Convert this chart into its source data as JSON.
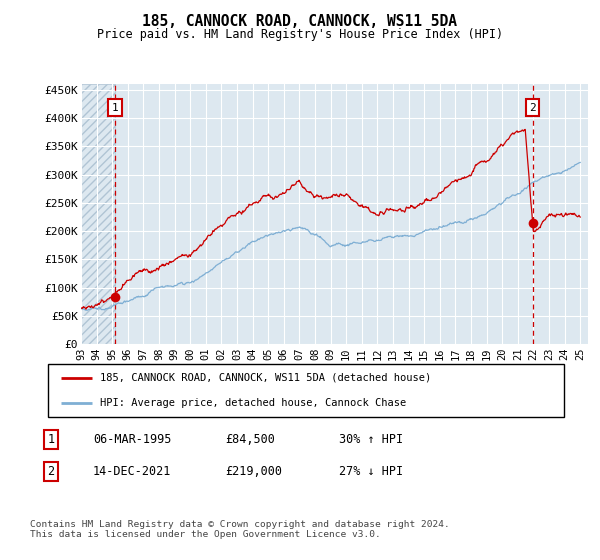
{
  "title": "185, CANNOCK ROAD, CANNOCK, WS11 5DA",
  "subtitle": "Price paid vs. HM Land Registry's House Price Index (HPI)",
  "ylabel_ticks": [
    "£0",
    "£50K",
    "£100K",
    "£150K",
    "£200K",
    "£250K",
    "£300K",
    "£350K",
    "£400K",
    "£450K"
  ],
  "ytick_values": [
    0,
    50000,
    100000,
    150000,
    200000,
    250000,
    300000,
    350000,
    400000,
    450000
  ],
  "ylim": [
    0,
    460000
  ],
  "xlim_start": 1993.0,
  "xlim_end": 2025.5,
  "xtick_years": [
    1993,
    1994,
    1995,
    1996,
    1997,
    1998,
    1999,
    2000,
    2001,
    2002,
    2003,
    2004,
    2005,
    2006,
    2007,
    2008,
    2009,
    2010,
    2011,
    2012,
    2013,
    2014,
    2015,
    2016,
    2017,
    2018,
    2019,
    2020,
    2021,
    2022,
    2023,
    2024,
    2025
  ],
  "hpi_color": "#7fafd4",
  "price_color": "#cc0000",
  "bg_color": "#dde8f0",
  "grid_color": "#ffffff",
  "point1_year": 1995.18,
  "point1_value": 84500,
  "point2_year": 2021.96,
  "point2_value": 219000,
  "legend_label1": "185, CANNOCK ROAD, CANNOCK, WS11 5DA (detached house)",
  "legend_label2": "HPI: Average price, detached house, Cannock Chase",
  "annotation1_label": "1",
  "annotation2_label": "2",
  "note1_num": "1",
  "note1_date": "06-MAR-1995",
  "note1_price": "£84,500",
  "note1_change": "30% ↑ HPI",
  "note2_num": "2",
  "note2_date": "14-DEC-2021",
  "note2_price": "£219,000",
  "note2_change": "27% ↓ HPI",
  "footer": "Contains HM Land Registry data © Crown copyright and database right 2024.\nThis data is licensed under the Open Government Licence v3.0."
}
